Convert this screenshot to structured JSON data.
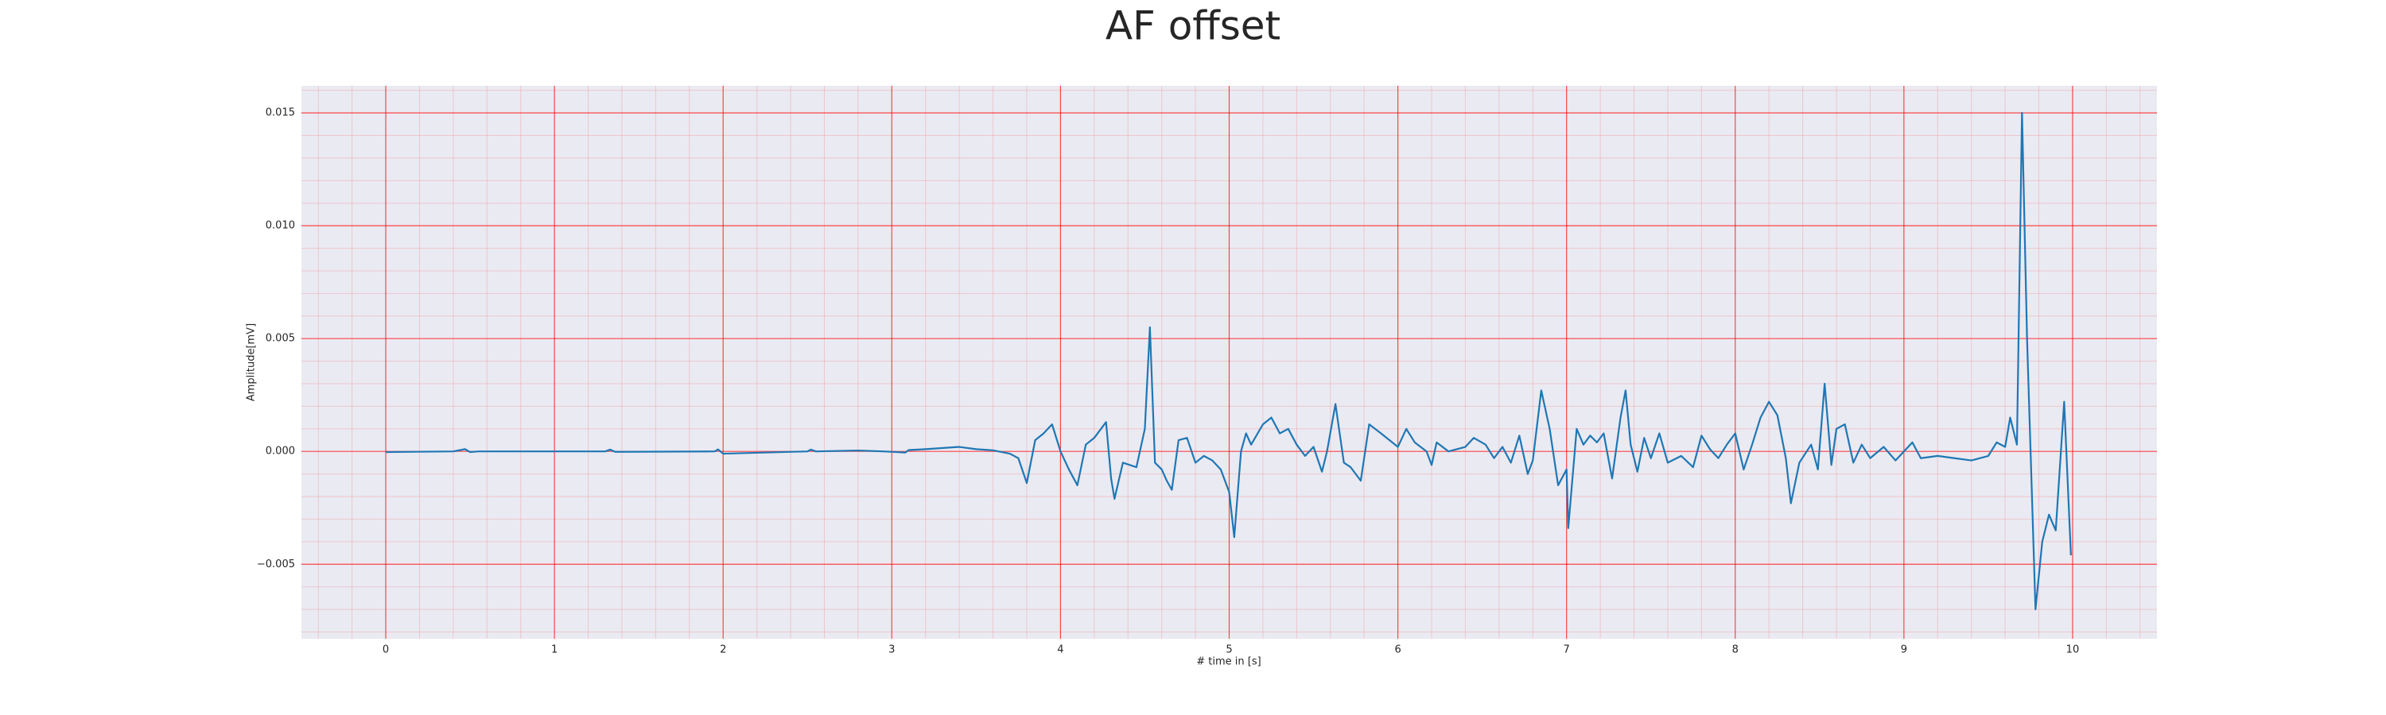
{
  "chart_data": {
    "type": "line",
    "title": "AF offset",
    "xlabel": "# time in [s]",
    "ylabel": "Amplitude[mV]",
    "x": [
      0,
      0.4,
      0.47,
      0.5,
      0.55,
      1.3,
      1.33,
      1.36,
      1.95,
      1.97,
      2.0,
      2.5,
      2.52,
      2.55,
      2.8,
      2.95,
      3.08,
      3.1,
      3.2,
      3.4,
      3.5,
      3.6,
      3.7,
      3.75,
      3.8,
      3.85,
      3.9,
      3.95,
      4.0,
      4.05,
      4.1,
      4.15,
      4.2,
      4.27,
      4.3,
      4.32,
      4.37,
      4.45,
      4.5,
      4.53,
      4.56,
      4.6,
      4.63,
      4.66,
      4.7,
      4.75,
      4.8,
      4.85,
      4.9,
      4.95,
      5.0,
      5.03,
      5.07,
      5.1,
      5.13,
      5.2,
      5.25,
      5.3,
      5.35,
      5.4,
      5.45,
      5.5,
      5.55,
      5.58,
      5.63,
      5.68,
      5.72,
      5.78,
      5.83,
      5.9,
      5.95,
      6.0,
      6.05,
      6.1,
      6.17,
      6.2,
      6.23,
      6.3,
      6.4,
      6.45,
      6.52,
      6.57,
      6.62,
      6.67,
      6.72,
      6.77,
      6.8,
      6.85,
      6.9,
      6.95,
      7.0,
      7.01,
      7.06,
      7.1,
      7.14,
      7.18,
      7.22,
      7.27,
      7.32,
      7.35,
      7.38,
      7.42,
      7.46,
      7.5,
      7.55,
      7.6,
      7.68,
      7.75,
      7.8,
      7.85,
      7.9,
      7.95,
      8.0,
      8.05,
      8.1,
      8.15,
      8.2,
      8.25,
      8.3,
      8.33,
      8.38,
      8.45,
      8.49,
      8.53,
      8.57,
      8.6,
      8.65,
      8.7,
      8.75,
      8.8,
      8.88,
      8.95,
      9.05,
      9.1,
      9.2,
      9.3,
      9.4,
      9.5,
      9.55,
      9.6,
      9.63,
      9.67,
      9.7,
      9.73,
      9.78,
      9.82,
      9.86,
      9.9,
      9.95,
      9.99
    ],
    "series": [
      {
        "name": "AF offset",
        "color": "#1f77b4",
        "values": [
          -3e-05,
          0,
          0.0001,
          -3e-05,
          0,
          0,
          8e-05,
          -2e-05,
          0,
          9e-05,
          -0.0001,
          0,
          8e-05,
          0,
          4e-05,
          0,
          -5e-05,
          6e-05,
          0.0001,
          0.0002,
          0.0001,
          5e-05,
          -0.0001,
          -0.0003,
          -0.0014,
          0.0005,
          0.0008,
          0.0012,
          0,
          -0.0008,
          -0.0015,
          0.0003,
          0.0006,
          0.0013,
          -0.0012,
          -0.0021,
          -0.0005,
          -0.0007,
          0.001,
          0.0055,
          -0.0005,
          -0.0008,
          -0.0013,
          -0.0017,
          0.0005,
          0.0006,
          -0.0005,
          -0.0002,
          -0.0004,
          -0.0008,
          -0.0018,
          -0.0038,
          0,
          0.0008,
          0.0003,
          0.0012,
          0.0015,
          0.0008,
          0.001,
          0.0003,
          -0.0002,
          0.0002,
          -0.0009,
          0,
          0.0021,
          -0.0005,
          -0.0007,
          -0.0013,
          0.0012,
          0.0008,
          0.0005,
          0.0002,
          0.001,
          0.0004,
          0,
          -0.0006,
          0.0004,
          0,
          0.0002,
          0.0006,
          0.0003,
          -0.0003,
          0.0002,
          -0.0005,
          0.0007,
          -0.001,
          -0.0004,
          0.0027,
          0.001,
          -0.0015,
          -0.0008,
          -0.0034,
          0.001,
          0.0003,
          0.0007,
          0.0004,
          0.0008,
          -0.0012,
          0.0015,
          0.0027,
          0.0003,
          -0.0009,
          0.0006,
          -0.0003,
          0.0008,
          -0.0005,
          -0.0002,
          -0.0007,
          0.0007,
          0.0001,
          -0.0003,
          0.0003,
          0.0008,
          -0.0008,
          0.0003,
          0.0015,
          0.0022,
          0.0016,
          -0.0003,
          -0.0023,
          -0.0005,
          0.0003,
          -0.0008,
          0.003,
          -0.0006,
          0.001,
          0.0012,
          -0.0005,
          0.0003,
          -0.0003,
          0.0002,
          -0.0004,
          0.0004,
          -0.0003,
          -0.0002,
          -0.0003,
          -0.0004,
          -0.0002,
          0.0004,
          0.0002,
          0.0015,
          0.0003,
          0.015,
          0.005,
          -0.007,
          -0.004,
          -0.0028,
          -0.0035,
          0.0022,
          -0.0046
        ]
      }
    ],
    "xlim": [
      -0.5,
      10.5
    ],
    "xticks": [
      0,
      1,
      2,
      3,
      4,
      5,
      6,
      7,
      8,
      9,
      10
    ],
    "ylim": [
      -0.0083,
      0.0162
    ],
    "yticks": [
      {
        "value": -0.005,
        "label": "−0.005"
      },
      {
        "value": 0,
        "label": "0.000"
      },
      0.005,
      {
        "value": 0.01,
        "label": "0.010"
      },
      0.015
    ],
    "grid": true,
    "grid_color": "#ff0000",
    "minor_grid": true,
    "background": "#eaeaf2"
  }
}
